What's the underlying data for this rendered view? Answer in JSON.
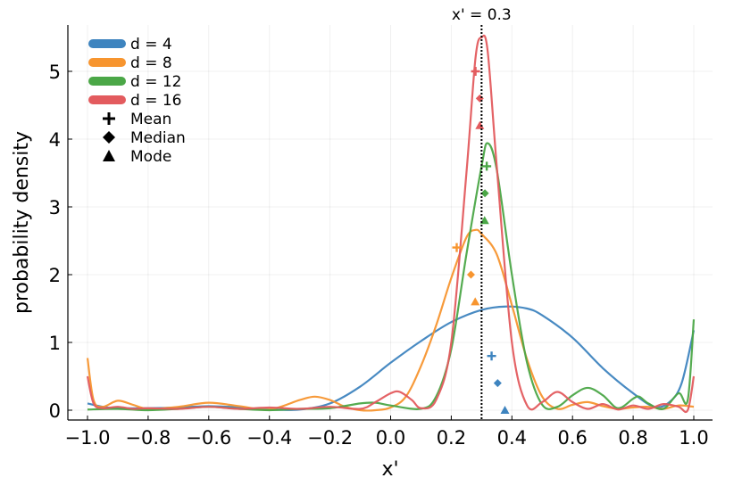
{
  "chart_data": {
    "type": "line",
    "xlabel": "x'",
    "ylabel": "probability density",
    "xlim": [
      -1.07,
      1.07
    ],
    "ylim": [
      -0.15,
      5.68
    ],
    "xticks": [
      -1.0,
      -0.8,
      -0.6,
      -0.4,
      -0.2,
      0.0,
      0.2,
      0.4,
      0.6,
      0.8,
      1.0
    ],
    "xtick_labels": [
      "−1.0",
      "−0.8",
      "−0.6",
      "−0.4",
      "−0.2",
      "0.0",
      "0.2",
      "0.4",
      "0.6",
      "0.8",
      "1.0"
    ],
    "yticks": [
      0,
      1,
      2,
      3,
      4,
      5
    ],
    "ytick_labels": [
      "0",
      "1",
      "2",
      "3",
      "4",
      "5"
    ],
    "grid": true,
    "legend_position": "top-left",
    "reference_line": {
      "x": 0.3,
      "label": "x' = 0.3",
      "style": "dotted-black"
    },
    "series": [
      {
        "name": "d = 4",
        "color": "#3e84bf",
        "points": [
          [
            -1.0,
            0.1
          ],
          [
            -0.95,
            0.05
          ],
          [
            -0.9,
            0.03
          ],
          [
            -0.8,
            0.03
          ],
          [
            -0.7,
            0.04
          ],
          [
            -0.6,
            0.06
          ],
          [
            -0.5,
            0.04
          ],
          [
            -0.4,
            0.01
          ],
          [
            -0.3,
            0.01
          ],
          [
            -0.2,
            0.1
          ],
          [
            -0.1,
            0.35
          ],
          [
            0.0,
            0.7
          ],
          [
            0.1,
            1.02
          ],
          [
            0.2,
            1.3
          ],
          [
            0.3,
            1.48
          ],
          [
            0.38,
            1.53
          ],
          [
            0.45,
            1.5
          ],
          [
            0.5,
            1.4
          ],
          [
            0.6,
            1.07
          ],
          [
            0.7,
            0.62
          ],
          [
            0.8,
            0.25
          ],
          [
            0.87,
            0.05
          ],
          [
            0.92,
            0.12
          ],
          [
            0.96,
            0.4
          ],
          [
            1.0,
            1.18
          ]
        ],
        "mean": [
          0.333,
          0.8
        ],
        "median": [
          0.353,
          0.4
        ],
        "mode": [
          0.377,
          0.0
        ]
      },
      {
        "name": "d = 8",
        "color": "#f7952f",
        "points": [
          [
            -1.0,
            0.77
          ],
          [
            -0.98,
            0.15
          ],
          [
            -0.95,
            0.05
          ],
          [
            -0.9,
            0.14
          ],
          [
            -0.85,
            0.08
          ],
          [
            -0.8,
            0.02
          ],
          [
            -0.7,
            0.05
          ],
          [
            -0.6,
            0.11
          ],
          [
            -0.5,
            0.06
          ],
          [
            -0.4,
            0.01
          ],
          [
            -0.3,
            0.15
          ],
          [
            -0.25,
            0.2
          ],
          [
            -0.2,
            0.15
          ],
          [
            -0.15,
            0.05
          ],
          [
            -0.1,
            0.0
          ],
          [
            -0.05,
            0.0
          ],
          [
            0.0,
            0.04
          ],
          [
            0.05,
            0.2
          ],
          [
            0.1,
            0.65
          ],
          [
            0.15,
            1.25
          ],
          [
            0.2,
            1.95
          ],
          [
            0.25,
            2.55
          ],
          [
            0.28,
            2.66
          ],
          [
            0.3,
            2.6
          ],
          [
            0.35,
            2.3
          ],
          [
            0.4,
            1.55
          ],
          [
            0.45,
            0.75
          ],
          [
            0.5,
            0.2
          ],
          [
            0.55,
            0.02
          ],
          [
            0.6,
            0.08
          ],
          [
            0.65,
            0.12
          ],
          [
            0.7,
            0.06
          ],
          [
            0.75,
            0.02
          ],
          [
            0.8,
            0.04
          ],
          [
            0.85,
            0.05
          ],
          [
            0.9,
            0.02
          ],
          [
            0.95,
            0.07
          ],
          [
            1.0,
            0.05
          ]
        ],
        "mean": [
          0.218,
          2.4
        ],
        "median": [
          0.265,
          2.0
        ],
        "mode": [
          0.279,
          1.6
        ]
      },
      {
        "name": "d = 12",
        "color": "#4ba747",
        "points": [
          [
            -1.0,
            0.01
          ],
          [
            -0.9,
            0.02
          ],
          [
            -0.8,
            0.0
          ],
          [
            -0.7,
            0.02
          ],
          [
            -0.6,
            0.05
          ],
          [
            -0.5,
            0.02
          ],
          [
            -0.4,
            0.0
          ],
          [
            -0.3,
            0.02
          ],
          [
            -0.2,
            0.03
          ],
          [
            -0.1,
            0.1
          ],
          [
            -0.05,
            0.11
          ],
          [
            0.0,
            0.07
          ],
          [
            0.1,
            0.02
          ],
          [
            0.15,
            0.2
          ],
          [
            0.2,
            0.9
          ],
          [
            0.25,
            2.3
          ],
          [
            0.3,
            3.6
          ],
          [
            0.32,
            3.94
          ],
          [
            0.35,
            3.55
          ],
          [
            0.4,
            2.0
          ],
          [
            0.45,
            0.7
          ],
          [
            0.5,
            0.08
          ],
          [
            0.55,
            0.05
          ],
          [
            0.6,
            0.22
          ],
          [
            0.65,
            0.33
          ],
          [
            0.7,
            0.22
          ],
          [
            0.75,
            0.03
          ],
          [
            0.8,
            0.17
          ],
          [
            0.82,
            0.2
          ],
          [
            0.85,
            0.1
          ],
          [
            0.9,
            0.02
          ],
          [
            0.95,
            0.25
          ],
          [
            0.98,
            0.15
          ],
          [
            1.0,
            1.34
          ]
        ],
        "mean": [
          0.317,
          3.6
        ],
        "median": [
          0.311,
          3.2
        ],
        "mode": [
          0.31,
          2.8
        ]
      },
      {
        "name": "d = 16",
        "color": "#e35b5e",
        "points": [
          [
            -1.0,
            0.5
          ],
          [
            -0.98,
            0.1
          ],
          [
            -0.95,
            0.03
          ],
          [
            -0.9,
            0.05
          ],
          [
            -0.85,
            0.02
          ],
          [
            -0.8,
            0.03
          ],
          [
            -0.7,
            0.02
          ],
          [
            -0.6,
            0.05
          ],
          [
            -0.5,
            0.02
          ],
          [
            -0.4,
            0.04
          ],
          [
            -0.3,
            0.02
          ],
          [
            -0.2,
            0.05
          ],
          [
            -0.1,
            0.02
          ],
          [
            -0.05,
            0.12
          ],
          [
            0.0,
            0.25
          ],
          [
            0.03,
            0.27
          ],
          [
            0.07,
            0.15
          ],
          [
            0.1,
            0.03
          ],
          [
            0.15,
            0.15
          ],
          [
            0.2,
            1.0
          ],
          [
            0.25,
            3.5
          ],
          [
            0.28,
            5.2
          ],
          [
            0.3,
            5.5
          ],
          [
            0.32,
            5.3
          ],
          [
            0.35,
            3.6
          ],
          [
            0.4,
            1.0
          ],
          [
            0.45,
            0.07
          ],
          [
            0.5,
            0.12
          ],
          [
            0.55,
            0.27
          ],
          [
            0.6,
            0.12
          ],
          [
            0.65,
            0.02
          ],
          [
            0.7,
            0.09
          ],
          [
            0.75,
            0.01
          ],
          [
            0.8,
            0.07
          ],
          [
            0.85,
            0.02
          ],
          [
            0.9,
            0.09
          ],
          [
            0.95,
            0.05
          ],
          [
            0.98,
            0.0
          ],
          [
            1.0,
            0.5
          ]
        ],
        "mean": [
          0.28,
          5.0
        ],
        "median": [
          0.294,
          4.6
        ],
        "mode": [
          0.294,
          4.2
        ]
      }
    ],
    "marker_legend": [
      {
        "name": "Mean",
        "symbol": "plus"
      },
      {
        "name": "Median",
        "symbol": "diamond"
      },
      {
        "name": "Mode",
        "symbol": "triangle"
      }
    ]
  }
}
